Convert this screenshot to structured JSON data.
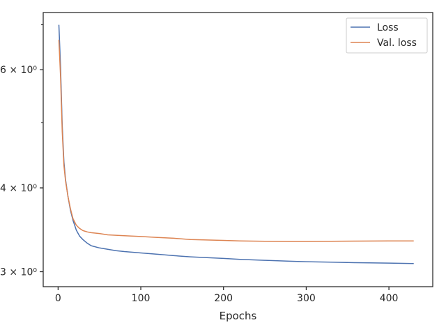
{
  "chart_data": {
    "type": "line",
    "title": "",
    "xlabel": "Epochs",
    "ylabel": "",
    "yscale": "log",
    "xlim": [
      -18,
      453
    ],
    "ylim": [
      2.85,
      7.3
    ],
    "grid": false,
    "legend_position": "top-right",
    "x_ticks": [
      {
        "value": 0,
        "label": "0"
      },
      {
        "value": 100,
        "label": "100"
      },
      {
        "value": 200,
        "label": "200"
      },
      {
        "value": 300,
        "label": "300"
      },
      {
        "value": 400,
        "label": "400"
      }
    ],
    "y_major_ticks": [
      {
        "value": 3,
        "label": "3 × 10⁰"
      },
      {
        "value": 4,
        "label": "4 × 10⁰"
      },
      {
        "value": 6,
        "label": "6 × 10⁰"
      }
    ],
    "y_minor_ticks": [
      5,
      7
    ],
    "series": [
      {
        "name": "Loss",
        "color": "#4c72b0",
        "x": [
          1,
          3,
          5,
          7,
          9,
          12,
          15,
          18,
          22,
          26,
          30,
          35,
          40,
          50,
          60,
          70,
          80,
          100,
          120,
          140,
          160,
          180,
          200,
          220,
          250,
          280,
          300,
          330,
          360,
          400,
          430
        ],
        "y": [
          7.0,
          6.05,
          4.95,
          4.38,
          4.12,
          3.88,
          3.7,
          3.58,
          3.46,
          3.39,
          3.35,
          3.31,
          3.28,
          3.255,
          3.24,
          3.225,
          3.215,
          3.2,
          3.185,
          3.17,
          3.157,
          3.148,
          3.14,
          3.13,
          3.12,
          3.11,
          3.105,
          3.1,
          3.095,
          3.09,
          3.085
        ]
      },
      {
        "name": "Val. loss",
        "color": "#dd8452",
        "x": [
          1,
          3,
          5,
          7,
          9,
          12,
          15,
          18,
          22,
          26,
          30,
          35,
          40,
          50,
          60,
          70,
          80,
          100,
          120,
          140,
          160,
          180,
          200,
          220,
          250,
          280,
          300,
          330,
          360,
          400,
          430
        ],
        "y": [
          6.65,
          5.85,
          4.85,
          4.32,
          4.1,
          3.88,
          3.72,
          3.6,
          3.52,
          3.48,
          3.455,
          3.44,
          3.43,
          3.42,
          3.405,
          3.4,
          3.395,
          3.385,
          3.375,
          3.365,
          3.35,
          3.345,
          3.34,
          3.335,
          3.33,
          3.328,
          3.328,
          3.33,
          3.332,
          3.335,
          3.335
        ]
      }
    ]
  }
}
